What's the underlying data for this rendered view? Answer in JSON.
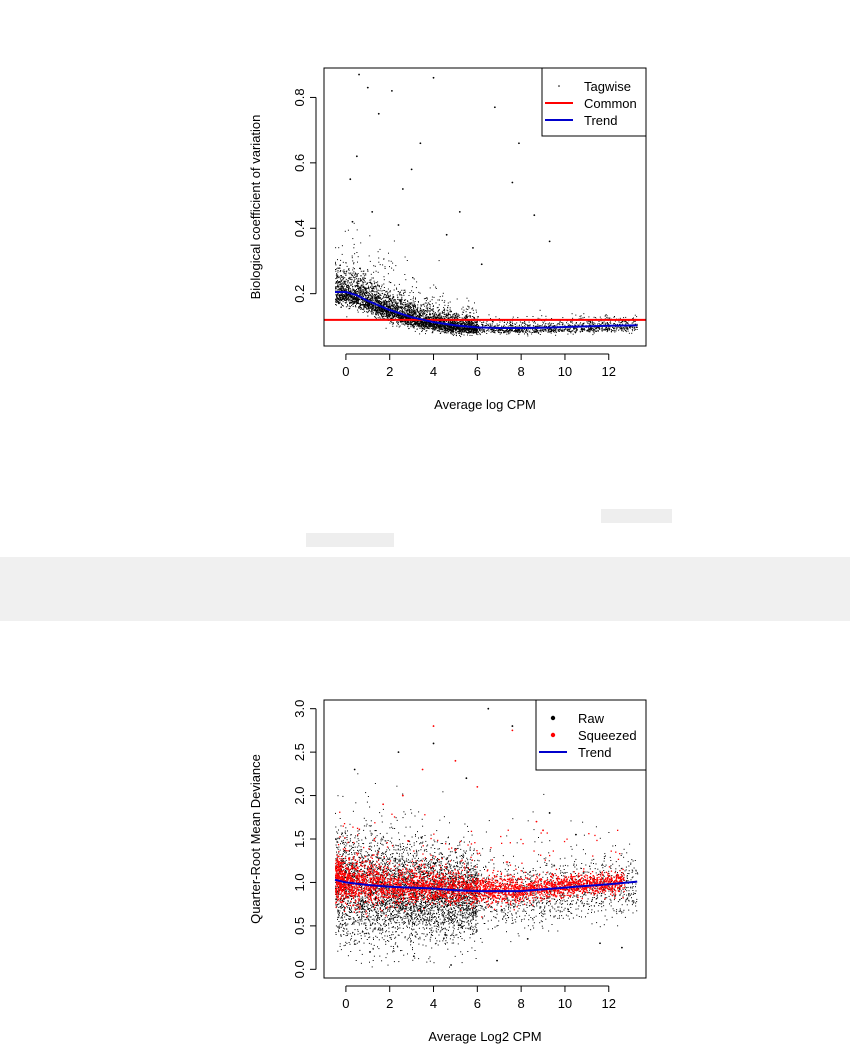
{
  "chart_data": [
    {
      "type": "scatter",
      "title": "",
      "xlabel": "Average log CPM",
      "ylabel": "Biological coefficient of variation",
      "xlim": [
        -1.0,
        13.7
      ],
      "ylim": [
        0.04,
        0.89
      ],
      "xticks": [
        0,
        2,
        4,
        6,
        8,
        10,
        12
      ],
      "yticks": [
        0.2,
        0.4,
        0.6,
        0.8
      ],
      "grid": false,
      "legend_position": "top-right",
      "series": [
        {
          "name": "Tagwise",
          "kind": "points",
          "color": "#000000",
          "x": [
            0.6,
            1.0,
            0.2,
            2.1,
            1.5,
            2.6,
            4.0,
            3.4,
            5.2,
            6.8,
            7.9,
            8.6,
            9.3,
            0.5,
            3.0,
            4.6,
            7.6,
            1.2,
            2.4,
            5.8,
            0.3,
            6.2
          ],
          "y": [
            0.87,
            0.83,
            0.55,
            0.82,
            0.75,
            0.52,
            0.86,
            0.66,
            0.45,
            0.77,
            0.66,
            0.44,
            0.36,
            0.62,
            0.58,
            0.38,
            0.54,
            0.45,
            0.41,
            0.34,
            0.42,
            0.29
          ]
        },
        {
          "name": "Common",
          "kind": "hline",
          "color": "#ff0000",
          "y": 0.12
        },
        {
          "name": "Trend",
          "kind": "line",
          "color": "#0000cc",
          "x": [
            -0.5,
            0,
            0.5,
            1,
            2,
            3,
            4,
            5,
            6,
            7,
            8,
            9,
            10,
            11,
            12,
            13.3
          ],
          "y": [
            0.205,
            0.205,
            0.195,
            0.178,
            0.15,
            0.128,
            0.113,
            0.103,
            0.097,
            0.095,
            0.095,
            0.096,
            0.098,
            0.1,
            0.102,
            0.103
          ]
        }
      ],
      "legend": [
        {
          "label": "Tagwise",
          "symbol": "dot",
          "color": "#000000"
        },
        {
          "label": "Common",
          "symbol": "line",
          "color": "#ff0000"
        },
        {
          "label": "Trend",
          "symbol": "line",
          "color": "#0000cc"
        }
      ]
    },
    {
      "type": "scatter",
      "title": "",
      "xlabel": "Average Log2 CPM",
      "ylabel": "Quarter-Root Mean Deviance",
      "xlim": [
        -1.0,
        13.7
      ],
      "ylim": [
        -0.1,
        3.1
      ],
      "xticks": [
        0,
        2,
        4,
        6,
        8,
        10,
        12
      ],
      "yticks": [
        0.0,
        0.5,
        1.0,
        1.5,
        2.0,
        2.5,
        3.0
      ],
      "grid": false,
      "legend_position": "top-right",
      "series": [
        {
          "name": "Raw",
          "kind": "points",
          "color": "#000000",
          "x": [
            6.5,
            4.0,
            7.6,
            2.4,
            5.5,
            9.3,
            10.5,
            11.6,
            8.3,
            3.1,
            1.1,
            0.4,
            12.6,
            6.9,
            4.8
          ],
          "y": [
            3.0,
            2.6,
            2.8,
            2.5,
            2.2,
            1.8,
            1.55,
            0.3,
            0.35,
            0.15,
            0.2,
            2.3,
            0.25,
            0.1,
            0.05
          ]
        },
        {
          "name": "Squeezed",
          "kind": "points",
          "color": "#ff0000",
          "x": [
            4.0,
            7.6,
            5.0,
            3.5,
            6.0,
            8.7,
            1.7,
            2.6,
            9.0
          ],
          "y": [
            2.8,
            2.75,
            2.4,
            2.3,
            2.1,
            1.7,
            1.9,
            2.0,
            1.6
          ]
        },
        {
          "name": "Trend",
          "kind": "line",
          "color": "#0000cc",
          "x": [
            -0.5,
            0,
            1,
            2,
            3,
            4,
            5,
            6,
            7,
            8,
            9,
            10,
            11,
            12,
            13.3
          ],
          "y": [
            1.03,
            1.0,
            0.97,
            0.95,
            0.94,
            0.93,
            0.91,
            0.9,
            0.9,
            0.9,
            0.92,
            0.94,
            0.96,
            0.98,
            1.01
          ]
        }
      ],
      "legend": [
        {
          "label": "Raw",
          "symbol": "dot",
          "color": "#000000"
        },
        {
          "label": "Squeezed",
          "symbol": "dot",
          "color": "#ff0000"
        },
        {
          "label": "Trend",
          "symbol": "line",
          "color": "#0000cc"
        }
      ]
    }
  ]
}
